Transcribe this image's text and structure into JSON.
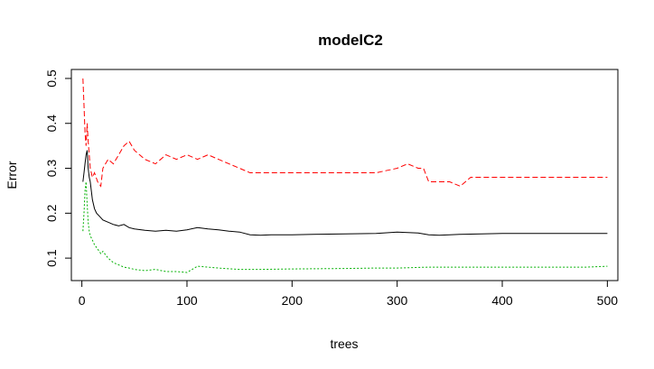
{
  "chart_data": {
    "type": "line",
    "title": "modelC2",
    "xlabel": "trees",
    "ylabel": "Error",
    "xlim": [
      -10,
      510
    ],
    "ylim": [
      0.05,
      0.52
    ],
    "xticks": [
      0,
      100,
      200,
      300,
      400,
      500
    ],
    "yticks": [
      0.1,
      0.2,
      0.3,
      0.4,
      0.5
    ],
    "grid": false,
    "legend": "none",
    "series": [
      {
        "color": "#000000",
        "dash": "solid",
        "x": [
          1,
          2,
          3,
          4,
          5,
          6,
          7,
          8,
          9,
          10,
          12,
          14,
          16,
          18,
          20,
          25,
          30,
          35,
          40,
          45,
          50,
          60,
          70,
          80,
          90,
          100,
          110,
          120,
          130,
          140,
          150,
          160,
          170,
          180,
          200,
          220,
          250,
          280,
          300,
          320,
          330,
          340,
          350,
          360,
          380,
          400,
          420,
          450,
          480,
          500
        ],
        "y": [
          0.27,
          0.29,
          0.31,
          0.33,
          0.34,
          0.3,
          0.28,
          0.27,
          0.25,
          0.23,
          0.21,
          0.2,
          0.195,
          0.19,
          0.185,
          0.18,
          0.175,
          0.172,
          0.175,
          0.168,
          0.165,
          0.162,
          0.16,
          0.162,
          0.16,
          0.163,
          0.168,
          0.165,
          0.163,
          0.16,
          0.158,
          0.152,
          0.151,
          0.152,
          0.152,
          0.153,
          0.154,
          0.155,
          0.158,
          0.156,
          0.152,
          0.151,
          0.152,
          0.153,
          0.154,
          0.155,
          0.155,
          0.155,
          0.155,
          0.155
        ]
      },
      {
        "color": "#FF0000",
        "dash": "6,3",
        "x": [
          1,
          2,
          3,
          4,
          5,
          6,
          7,
          8,
          10,
          12,
          15,
          18,
          20,
          25,
          30,
          35,
          40,
          45,
          50,
          55,
          60,
          70,
          80,
          90,
          100,
          110,
          120,
          130,
          140,
          150,
          160,
          170,
          180,
          200,
          220,
          250,
          280,
          300,
          310,
          320,
          325,
          330,
          335,
          340,
          350,
          360,
          370,
          380,
          400,
          420,
          440,
          460,
          480,
          500
        ],
        "y": [
          0.5,
          0.44,
          0.38,
          0.35,
          0.4,
          0.36,
          0.33,
          0.3,
          0.28,
          0.29,
          0.27,
          0.26,
          0.3,
          0.32,
          0.31,
          0.33,
          0.35,
          0.36,
          0.34,
          0.33,
          0.32,
          0.31,
          0.33,
          0.32,
          0.33,
          0.32,
          0.33,
          0.32,
          0.31,
          0.3,
          0.29,
          0.29,
          0.29,
          0.29,
          0.29,
          0.29,
          0.29,
          0.3,
          0.31,
          0.3,
          0.3,
          0.27,
          0.27,
          0.27,
          0.27,
          0.26,
          0.28,
          0.28,
          0.28,
          0.28,
          0.28,
          0.28,
          0.28,
          0.28
        ]
      },
      {
        "color": "#00B000",
        "dash": "2,2",
        "x": [
          1,
          2,
          3,
          4,
          5,
          6,
          7,
          8,
          10,
          12,
          15,
          18,
          20,
          25,
          30,
          35,
          40,
          45,
          50,
          60,
          70,
          80,
          90,
          100,
          110,
          120,
          130,
          150,
          170,
          200,
          250,
          280,
          300,
          330,
          360,
          400,
          450,
          480,
          500
        ],
        "y": [
          0.16,
          0.2,
          0.25,
          0.27,
          0.22,
          0.18,
          0.16,
          0.15,
          0.14,
          0.13,
          0.12,
          0.11,
          0.115,
          0.1,
          0.09,
          0.085,
          0.08,
          0.078,
          0.075,
          0.072,
          0.075,
          0.07,
          0.07,
          0.068,
          0.082,
          0.08,
          0.078,
          0.075,
          0.075,
          0.076,
          0.077,
          0.078,
          0.078,
          0.08,
          0.08,
          0.08,
          0.08,
          0.08,
          0.082
        ]
      }
    ]
  }
}
